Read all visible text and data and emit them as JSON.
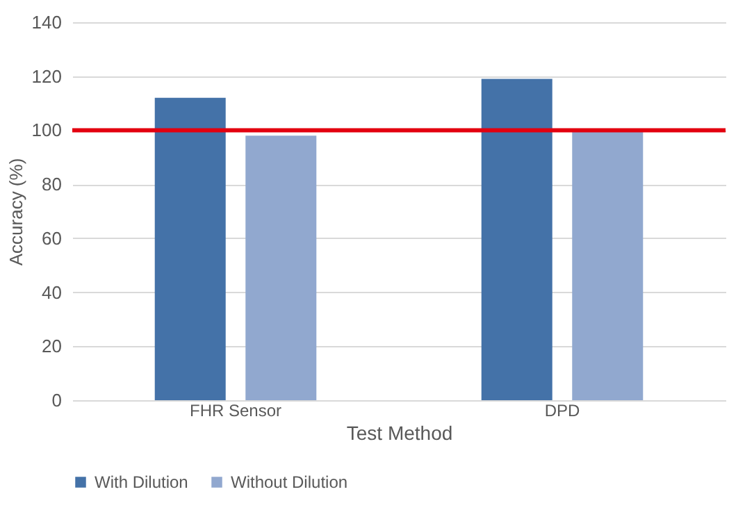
{
  "chart_data": {
    "type": "bar",
    "xlabel": "Test Method",
    "ylabel": "Accuracy (%)",
    "categories": [
      "FHR Sensor",
      "DPD"
    ],
    "series": [
      {
        "name": "With Dilution",
        "color": "#4472a8",
        "values": [
          112,
          119
        ]
      },
      {
        "name": "Without Dilution",
        "color": "#91a8cf",
        "values": [
          98,
          100
        ]
      }
    ],
    "ylim": [
      0,
      140
    ],
    "yticks": [
      0,
      20,
      40,
      60,
      80,
      100,
      120,
      140
    ],
    "grid": "y",
    "legend": "bottom",
    "ref_lines": [
      {
        "axis": "y",
        "value": 100,
        "color": "#e3000f"
      }
    ]
  }
}
